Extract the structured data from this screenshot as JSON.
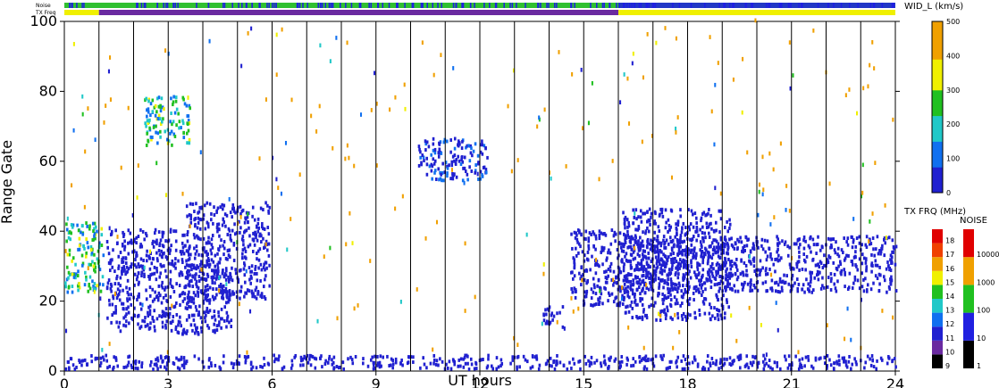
{
  "chart_data": {
    "type": "heatmap",
    "title": "",
    "xlabel": "UT hours",
    "ylabel": "Range Gate",
    "xlim": [
      0,
      24
    ],
    "ylim": [
      0,
      100
    ],
    "x_ticks": [
      "0",
      "3",
      "6",
      "9",
      "12",
      "15",
      "18",
      "21",
      "24"
    ],
    "y_ticks": [
      "0",
      "20",
      "40",
      "60",
      "80",
      "100"
    ],
    "hour_divisions": [
      1,
      2,
      3,
      4,
      5,
      6,
      7,
      8,
      9,
      10,
      11,
      12,
      13,
      14,
      15,
      16,
      17,
      18,
      19,
      20,
      21,
      22,
      23
    ],
    "top_bars": {
      "noise_label": "Noise",
      "txfreq_label": "TX Freq",
      "txfreq_segments": [
        {
          "start": 0,
          "end": 1,
          "color": "#f0f000"
        },
        {
          "start": 1,
          "end": 16,
          "color": "#6a2aa0"
        },
        {
          "start": 16,
          "end": 24,
          "color": "#f0f000"
        }
      ]
    },
    "colorbar_width": {
      "label": "WID_L (km/s)",
      "ticks": [
        "0",
        "100",
        "200",
        "300",
        "400",
        "500"
      ],
      "range": [
        0,
        500
      ]
    },
    "colorbar_txfreq": {
      "label": "TX FRQ (MHz)",
      "ticks": [
        "9",
        "10",
        "11",
        "12",
        "13",
        "14",
        "15",
        "16",
        "17",
        "18"
      ],
      "colors": [
        "#000000",
        "#6a2aa0",
        "#2020d0",
        "#1070f0",
        "#20c8c8",
        "#20c020",
        "#f0f000",
        "#f0a000",
        "#f04000",
        "#e00000"
      ]
    },
    "colorbar_noise": {
      "label": "NOISE",
      "ticks": [
        "1",
        "10",
        "100",
        "1000",
        "10000"
      ],
      "colors": [
        "#000000",
        "#2020e0",
        "#20c020",
        "#f0a000",
        "#e00000"
      ]
    },
    "series": [
      {
        "x_range": [
          0,
          24
        ],
        "y_range": [
          0,
          4
        ],
        "dominant_width": 40
      },
      {
        "x_range": [
          0,
          1.1
        ],
        "y_range": [
          22,
          42
        ],
        "dominant_width": 200
      },
      {
        "x_range": [
          1.2,
          4.8
        ],
        "y_range": [
          10,
          30
        ],
        "dominant_width": 30
      },
      {
        "x_range": [
          1.2,
          3.5
        ],
        "y_range": [
          30,
          40
        ],
        "dominant_width": 40
      },
      {
        "x_range": [
          3.5,
          5.9
        ],
        "y_range": [
          20,
          48
        ],
        "dominant_width": 40
      },
      {
        "x_range": [
          2.3,
          3.6
        ],
        "y_range": [
          64,
          78
        ],
        "dominant_width": 200
      },
      {
        "x_range": [
          14.6,
          16.1
        ],
        "y_range": [
          18,
          40
        ],
        "dominant_width": 40
      },
      {
        "x_range": [
          16.1,
          24
        ],
        "y_range": [
          22,
          38
        ],
        "dominant_width": 40
      },
      {
        "x_range": [
          16.1,
          19.2
        ],
        "y_range": [
          14,
          46
        ],
        "dominant_width": 40
      },
      {
        "x_range": [
          10.2,
          12.2
        ],
        "y_range": [
          54,
          66
        ],
        "dominant_width": 60
      },
      {
        "x_range": [
          13.8,
          14.4
        ],
        "y_range": [
          12,
          18
        ],
        "dominant_width": 40
      }
    ]
  }
}
